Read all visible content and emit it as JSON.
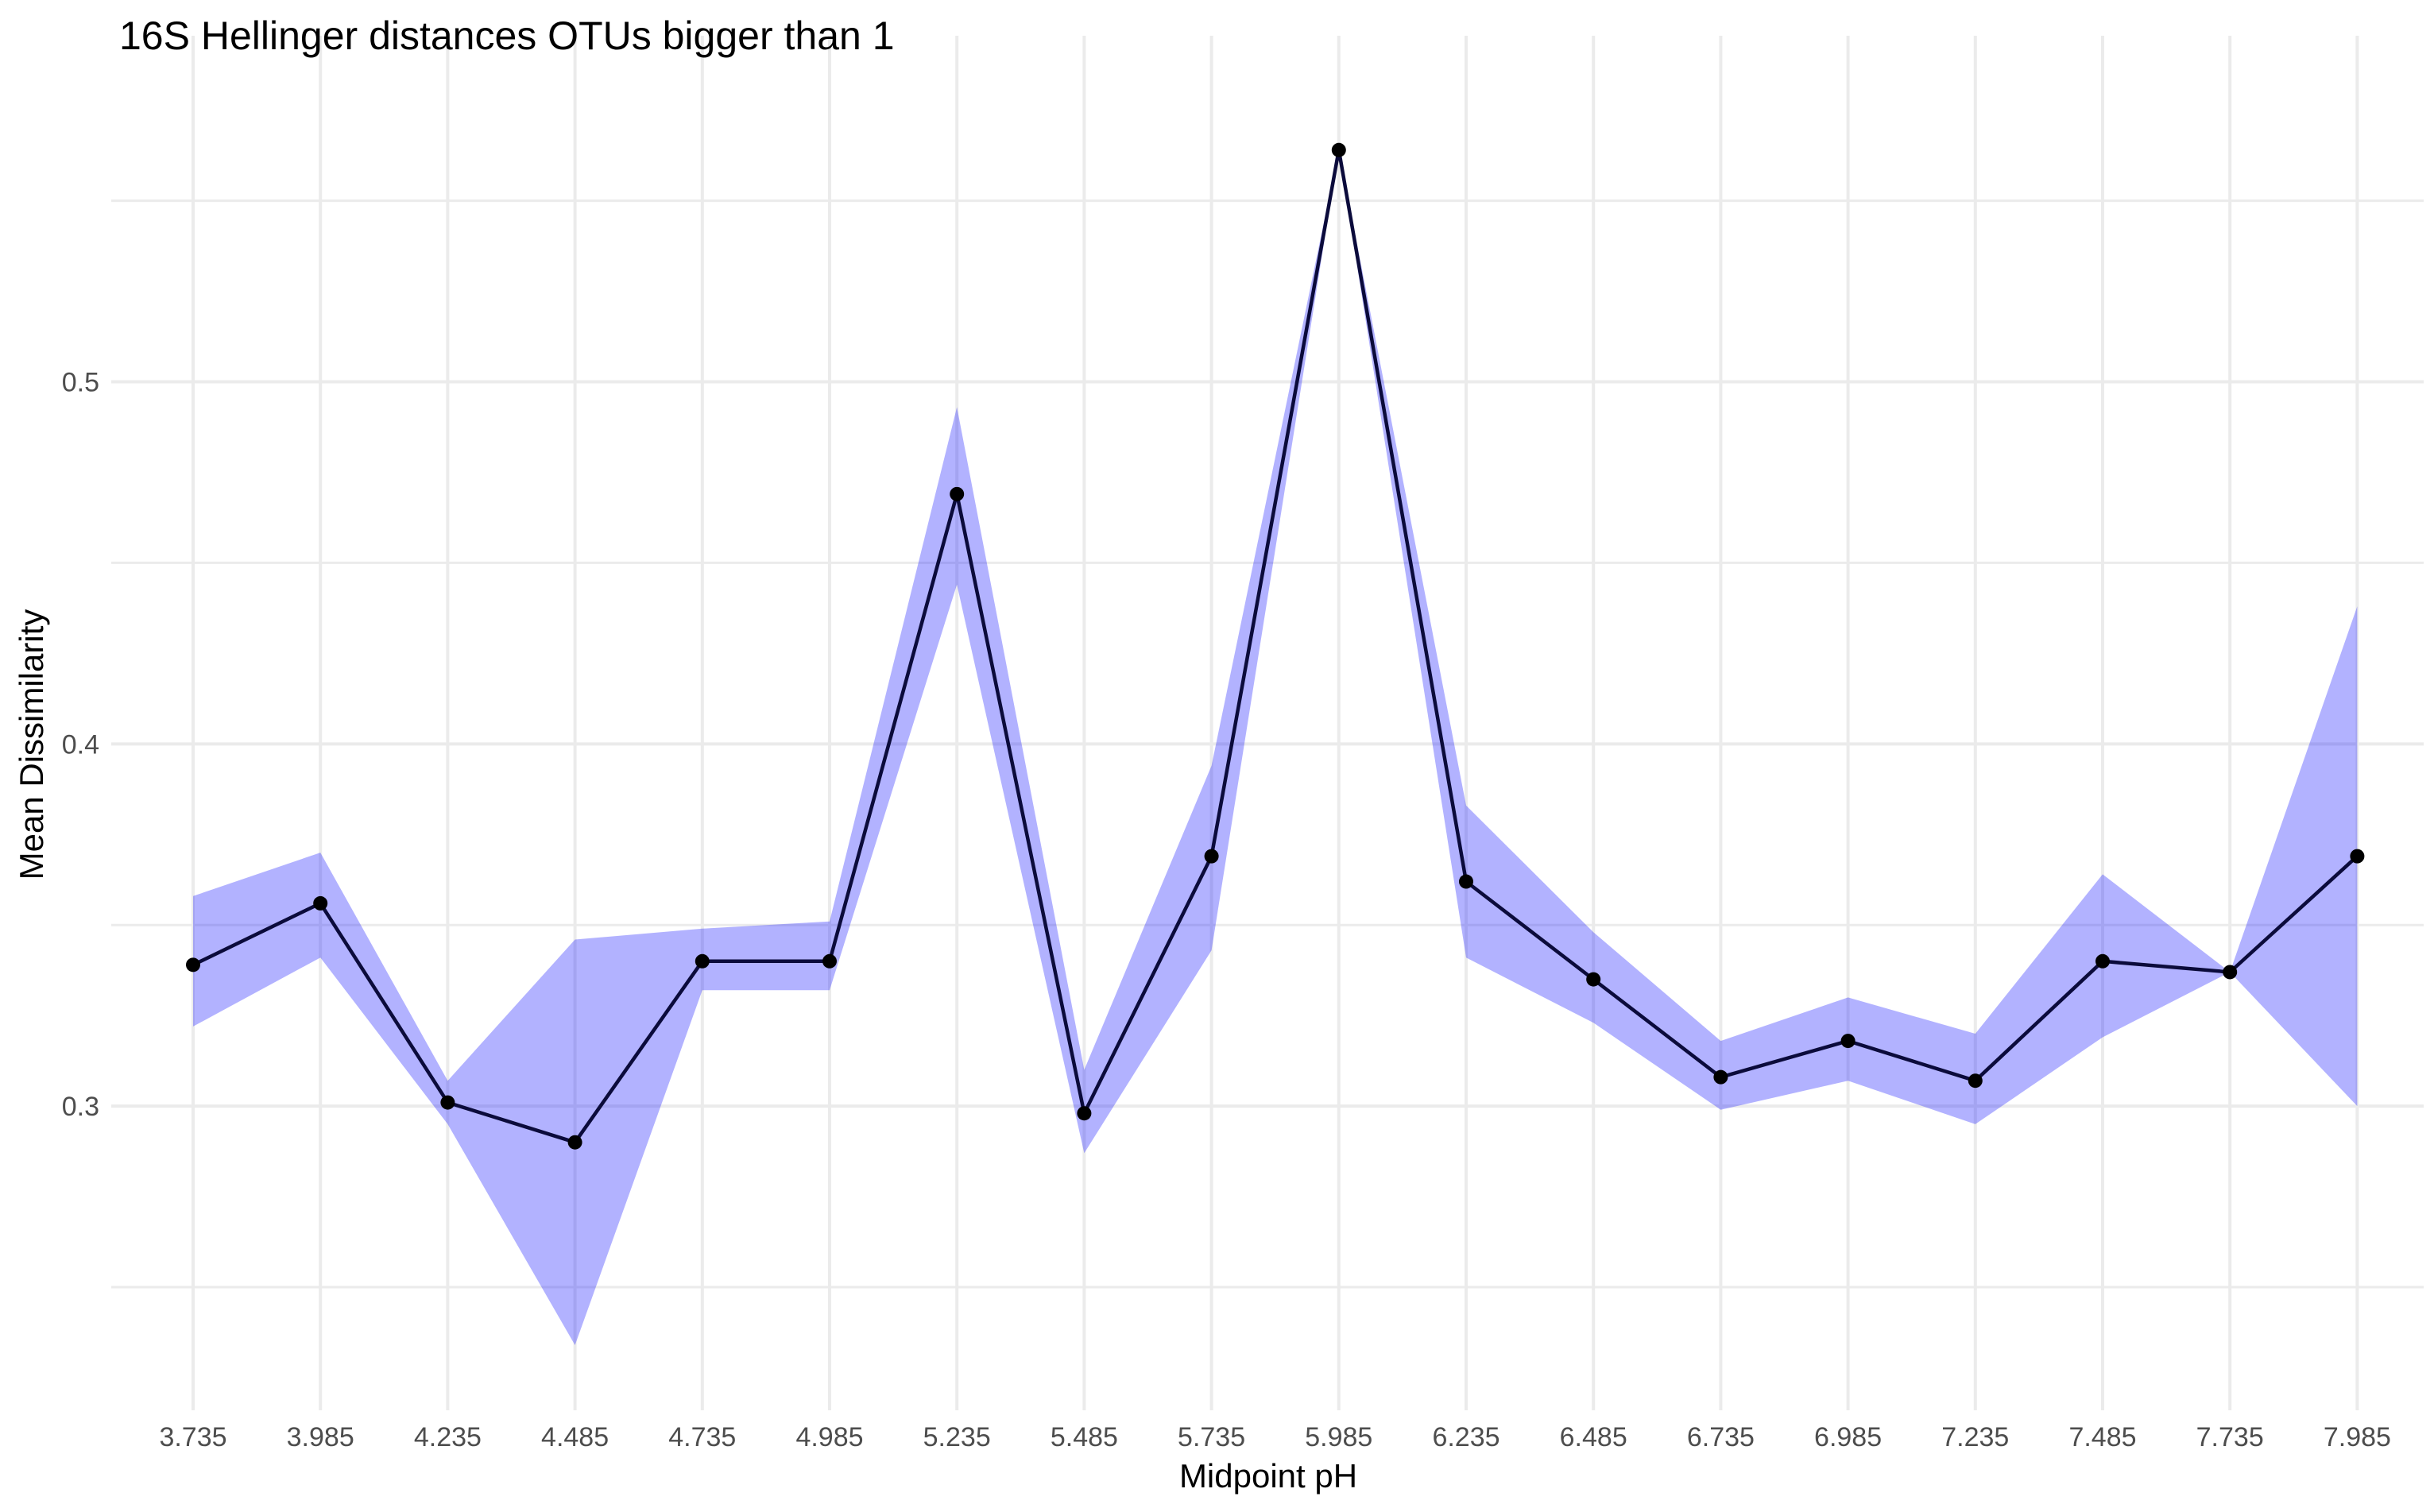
{
  "chart_data": {
    "type": "line",
    "title": "16S Hellinger distances OTUs bigger than 1",
    "xlabel": "Midpoint pH",
    "ylabel": "Mean Dissimilarity",
    "categories": [
      "3.735",
      "3.985",
      "4.235",
      "4.485",
      "4.735",
      "4.985",
      "5.235",
      "5.485",
      "5.735",
      "5.985",
      "6.235",
      "6.485",
      "6.735",
      "6.985",
      "7.235",
      "7.485",
      "7.735",
      "7.985"
    ],
    "series": [
      {
        "values": [
          0.339,
          0.356,
          0.301,
          0.29,
          0.34,
          0.34,
          0.469,
          0.298,
          0.369,
          0.564,
          0.362,
          0.335,
          0.308,
          0.318,
          0.307,
          0.34,
          0.337,
          0.369
        ],
        "lower": [
          0.322,
          0.341,
          0.295,
          0.234,
          0.332,
          0.332,
          0.444,
          0.287,
          0.343,
          0.564,
          0.341,
          0.323,
          0.299,
          0.307,
          0.295,
          0.319,
          0.337,
          0.3
        ],
        "upper": [
          0.358,
          0.37,
          0.307,
          0.346,
          0.349,
          0.351,
          0.493,
          0.31,
          0.394,
          0.564,
          0.383,
          0.348,
          0.318,
          0.33,
          0.32,
          0.364,
          0.337,
          0.438
        ]
      }
    ],
    "yticks": [
      0.3,
      0.4,
      0.5
    ],
    "yticks_minor": [
      0.25,
      0.35,
      0.45,
      0.55
    ],
    "ylim": [
      0.216,
      0.578
    ],
    "grid": true,
    "line_color": "#0b0b3b",
    "point_color": "#000000",
    "ribbon_color": "#0000ff",
    "ribbon_opacity": 0.3
  }
}
